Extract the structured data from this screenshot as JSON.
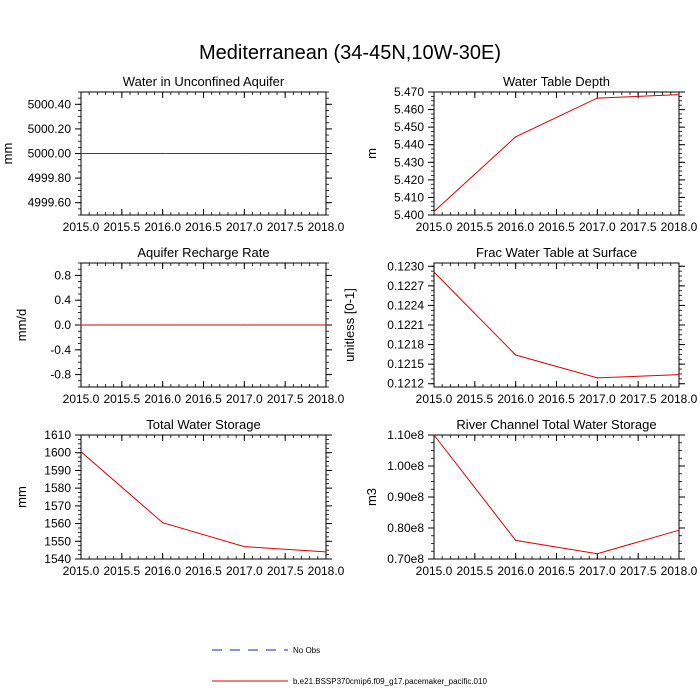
{
  "figure_title": "Mediterranean (34-45N,10W-30E)",
  "legend": [
    {
      "label": "No Obs",
      "color": "#2020c0",
      "style": "dashed"
    },
    {
      "label": "b.e21.BSSP370cmip6.f09_g17.pacemaker_pacific.010",
      "color": "#e00000",
      "style": "solid"
    }
  ],
  "chart_data": [
    {
      "type": "line",
      "title": "Water in Unconfined Aquifer",
      "ylabel": "mm",
      "xlim": [
        2015.0,
        2018.0
      ],
      "ylim": [
        4999.5,
        5000.5
      ],
      "xticks": [
        2015.0,
        2015.5,
        2016.0,
        2016.5,
        2017.0,
        2017.5,
        2018.0
      ],
      "xticklabels": [
        "2015.0",
        "2015.5",
        "2016.0",
        "2016.5",
        "2017.0",
        "2017.5",
        "2018.0"
      ],
      "yticks": [
        4999.6,
        4999.8,
        5000.0,
        5000.2,
        5000.4
      ],
      "yticklabels": [
        "4999.60",
        "4999.80",
        "5000.00",
        "5000.20",
        "5000.40"
      ],
      "series": [
        {
          "color": "#e00000",
          "x": [
            2015,
            2016,
            2017,
            2018
          ],
          "y": [
            5000.0,
            5000.0,
            5000.0,
            5000.0
          ]
        }
      ]
    },
    {
      "type": "line",
      "title": "Water Table Depth",
      "ylabel": "m",
      "xlim": [
        2015.0,
        2018.0
      ],
      "ylim": [
        5.4,
        5.47
      ],
      "xticks": [
        2015.0,
        2015.5,
        2016.0,
        2016.5,
        2017.0,
        2017.5,
        2018.0
      ],
      "xticklabels": [
        "2015.0",
        "2015.5",
        "2016.0",
        "2016.5",
        "2017.0",
        "2017.5",
        "2018.0"
      ],
      "yticks": [
        5.4,
        5.41,
        5.42,
        5.43,
        5.44,
        5.45,
        5.46,
        5.47
      ],
      "yticklabels": [
        "5.400",
        "5.410",
        "5.420",
        "5.430",
        "5.440",
        "5.450",
        "5.460",
        "5.470"
      ],
      "series": [
        {
          "color": "#e00000",
          "x": [
            2015,
            2016,
            2017,
            2018
          ],
          "y": [
            5.402,
            5.4445,
            5.4665,
            5.4685
          ]
        }
      ]
    },
    {
      "type": "line",
      "title": "Aquifer Recharge Rate",
      "ylabel": "mm/d",
      "xlim": [
        2015.0,
        2018.0
      ],
      "ylim": [
        -1.0,
        1.0
      ],
      "xticks": [
        2015.0,
        2015.5,
        2016.0,
        2016.5,
        2017.0,
        2017.5,
        2018.0
      ],
      "xticklabels": [
        "2015.0",
        "2015.5",
        "2016.0",
        "2016.5",
        "2017.0",
        "2017.5",
        "2018.0"
      ],
      "yticks": [
        -0.8,
        -0.4,
        0.0,
        0.4,
        0.8
      ],
      "yticklabels": [
        "-0.8",
        "-0.4",
        "0.0",
        "0.4",
        "0.8"
      ],
      "series": [
        {
          "color": "#e00000",
          "x": [
            2015,
            2016,
            2017,
            2018
          ],
          "y": [
            0.0,
            0.0,
            0.0,
            0.0
          ]
        }
      ]
    },
    {
      "type": "line",
      "title": "Frac Water Table at Surface",
      "ylabel": "unitless [0-1]",
      "xlim": [
        2015.0,
        2018.0
      ],
      "ylim": [
        0.12115,
        0.12305
      ],
      "xticks": [
        2015.0,
        2015.5,
        2016.0,
        2016.5,
        2017.0,
        2017.5,
        2018.0
      ],
      "xticklabels": [
        "2015.0",
        "2015.5",
        "2016.0",
        "2016.5",
        "2017.0",
        "2017.5",
        "2018.0"
      ],
      "yticks": [
        0.1212,
        0.1215,
        0.1218,
        0.1221,
        0.1224,
        0.1227,
        0.123
      ],
      "yticklabels": [
        "0.1212",
        "0.1215",
        "0.1218",
        "0.1221",
        "0.1224",
        "0.1227",
        "0.1230"
      ],
      "series": [
        {
          "color": "#e00000",
          "x": [
            2015,
            2016,
            2017,
            2018
          ],
          "y": [
            0.12291,
            0.12164,
            0.12129,
            0.12134
          ]
        }
      ]
    },
    {
      "type": "line",
      "title": "Total Water Storage",
      "ylabel": "mm",
      "xlim": [
        2015.0,
        2018.0
      ],
      "ylim": [
        1540,
        1610
      ],
      "xticks": [
        2015.0,
        2015.5,
        2016.0,
        2016.5,
        2017.0,
        2017.5,
        2018.0
      ],
      "xticklabels": [
        "2015.0",
        "2015.5",
        "2016.0",
        "2016.5",
        "2017.0",
        "2017.5",
        "2018.0"
      ],
      "yticks": [
        1540,
        1550,
        1560,
        1570,
        1580,
        1590,
        1600,
        1610
      ],
      "yticklabels": [
        "1540",
        "1550",
        "1560",
        "1570",
        "1580",
        "1590",
        "1600",
        "1610"
      ],
      "series": [
        {
          "color": "#e00000",
          "x": [
            2015,
            2016,
            2017,
            2018
          ],
          "y": [
            1600.5,
            1560.5,
            1547.0,
            1544.0
          ]
        }
      ]
    },
    {
      "type": "line",
      "title": "River Channel Total Water Storage",
      "ylabel": "m3",
      "xlim": [
        2015.0,
        2018.0
      ],
      "ylim": [
        70000000,
        110000000
      ],
      "xticks": [
        2015.0,
        2015.5,
        2016.0,
        2016.5,
        2017.0,
        2017.5,
        2018.0
      ],
      "xticklabels": [
        "2015.0",
        "2015.5",
        "2016.0",
        "2016.5",
        "2017.0",
        "2017.5",
        "2018.0"
      ],
      "yticks": [
        70000000,
        80000000,
        90000000,
        100000000,
        110000000
      ],
      "yticklabels": [
        "0.70e8",
        "0.80e8",
        "0.90e8",
        "1.00e8",
        "1.10e8"
      ],
      "series": [
        {
          "color": "#e00000",
          "x": [
            2015,
            2016,
            2017,
            2018
          ],
          "y": [
            110000000,
            76000000,
            71700000,
            79300000
          ]
        }
      ]
    }
  ]
}
